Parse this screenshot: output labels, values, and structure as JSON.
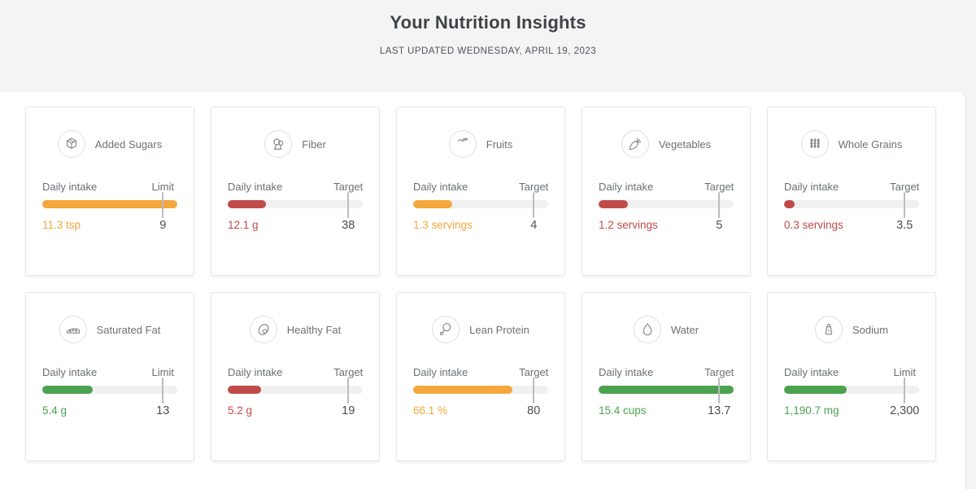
{
  "header": {
    "title": "Your Nutrition Insights",
    "subtitle": "LAST UPDATED WEDNESDAY, APRIL 19, 2023"
  },
  "colors": {
    "orange": "#F3A73C",
    "red": "#C14B4B",
    "green": "#4BA350"
  },
  "cards": [
    {
      "title": "Added Sugars",
      "icon": "sugar-cubes-icon",
      "intake_label": "Daily intake",
      "goal_label": "Limit",
      "value_text": "11.3 tsp",
      "goal_text": "9",
      "value": 11.3,
      "goal": 9,
      "status_color": "orange"
    },
    {
      "title": "Fiber",
      "icon": "broccoli-icon",
      "intake_label": "Daily intake",
      "goal_label": "Target",
      "value_text": "12.1 g",
      "goal_text": "38",
      "value": 12.1,
      "goal": 38,
      "status_color": "red"
    },
    {
      "title": "Fruits",
      "icon": "apple-icon",
      "intake_label": "Daily intake",
      "goal_label": "Target",
      "value_text": "1.3 servings",
      "goal_text": "4",
      "value": 1.3,
      "goal": 4,
      "status_color": "orange"
    },
    {
      "title": "Vegetables",
      "icon": "carrot-icon",
      "intake_label": "Daily intake",
      "goal_label": "Target",
      "value_text": "1.2 servings",
      "goal_text": "5",
      "value": 1.2,
      "goal": 5,
      "status_color": "red"
    },
    {
      "title": "Whole Grains",
      "icon": "wheat-icon",
      "intake_label": "Daily intake",
      "goal_label": "Target",
      "value_text": "0.3 servings",
      "goal_text": "3.5",
      "value": 0.3,
      "goal": 3.5,
      "status_color": "red"
    },
    {
      "title": "Saturated Fat",
      "icon": "cheese-icon",
      "intake_label": "Daily intake",
      "goal_label": "Limit",
      "value_text": "5.4 g",
      "goal_text": "13",
      "value": 5.4,
      "goal": 13,
      "status_color": "green"
    },
    {
      "title": "Healthy Fat",
      "icon": "avocado-icon",
      "intake_label": "Daily intake",
      "goal_label": "Target",
      "value_text": "5.2 g",
      "goal_text": "19",
      "value": 5.2,
      "goal": 19,
      "status_color": "red"
    },
    {
      "title": "Lean Protein",
      "icon": "drumstick-icon",
      "intake_label": "Daily intake",
      "goal_label": "Target",
      "value_text": "66.1 %",
      "goal_text": "80",
      "value": 66.1,
      "goal": 80,
      "status_color": "orange"
    },
    {
      "title": "Water",
      "icon": "water-drop-icon",
      "intake_label": "Daily intake",
      "goal_label": "Target",
      "value_text": "15.4 cups",
      "goal_text": "13.7",
      "value": 15.4,
      "goal": 13.7,
      "status_color": "green"
    },
    {
      "title": "Sodium",
      "icon": "salt-shaker-icon",
      "intake_label": "Daily intake",
      "goal_label": "Limit",
      "value_text": "1,190.7 mg",
      "goal_text": "2,300",
      "value": 1190.7,
      "goal": 2300,
      "status_color": "green"
    }
  ]
}
